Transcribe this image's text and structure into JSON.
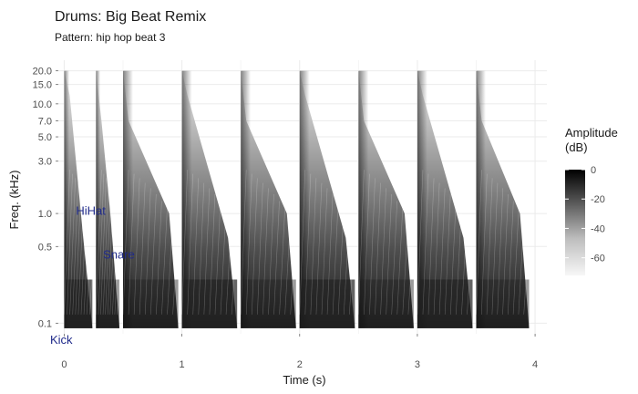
{
  "chart_data": {
    "type": "heatmap",
    "title": "Drums: Big Beat Remix",
    "subtitle": "Pattern: hip hop beat 3",
    "xlabel": "Time (s)",
    "ylabel": "Freq. (kHz)",
    "x_ticks": [
      0,
      1,
      2,
      3,
      4
    ],
    "y_ticks": [
      0.1,
      0.5,
      1.0,
      3.0,
      5.0,
      7.0,
      10.0,
      15.0,
      20.0
    ],
    "y_tick_labels": [
      "0.1",
      "0.5",
      "1.0",
      "3.0",
      "5.0",
      "7.0",
      "10.0",
      "15.0",
      "20.0"
    ],
    "xlim": [
      -0.05,
      4.1
    ],
    "ylim": [
      0.08,
      25
    ],
    "y_scale": "log",
    "grid": true,
    "legend": {
      "title_lines": [
        "Amplitude",
        "(dB)"
      ],
      "ticks": [
        0,
        -20,
        -40,
        -60
      ],
      "range": [
        -72,
        0
      ],
      "palette": "grey",
      "placement": "right"
    },
    "events": [
      {
        "name": "Kick",
        "time": 0.0
      },
      {
        "name": "HiHat",
        "time": 0.27
      },
      {
        "name": "Snare",
        "time": 0.5
      },
      {
        "name": "Kick",
        "time": 1.0
      },
      {
        "name": "Snare",
        "time": 1.5
      },
      {
        "name": "Kick",
        "time": 2.0
      },
      {
        "name": "Snare",
        "time": 2.5
      },
      {
        "name": "Kick",
        "time": 3.0
      },
      {
        "name": "Snare",
        "time": 3.5
      }
    ],
    "annotations": [
      {
        "label": "HiHat",
        "x": 0.1,
        "y": 1.05
      },
      {
        "label": "Snare",
        "x": 0.33,
        "y": 0.42
      },
      {
        "label": "Kick",
        "x": -0.12,
        "y": 0.07
      }
    ]
  }
}
